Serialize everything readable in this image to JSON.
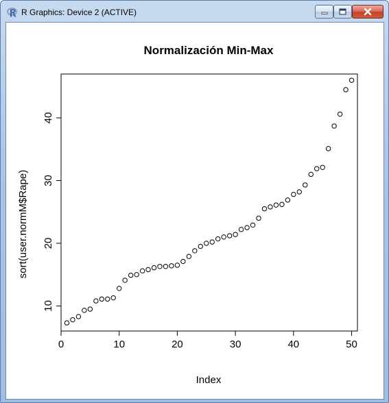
{
  "window": {
    "title": "R Graphics: Device 2 (ACTIVE)",
    "icons": {
      "app": "r-logo-icon",
      "minimize": "minimize-icon",
      "maximize": "maximize-icon",
      "close": "close-icon"
    }
  },
  "chart_data": {
    "type": "scatter",
    "title": "Normalización Min-Max",
    "xlabel": "Index",
    "ylabel": "sort(user.normM$Rape)",
    "xlim": [
      0,
      51
    ],
    "ylim": [
      6,
      47
    ],
    "xticks": [
      0,
      10,
      20,
      30,
      40,
      50
    ],
    "yticks": [
      10,
      20,
      30,
      40
    ],
    "grid": false,
    "legend": "none",
    "marker": "open-circle",
    "point_color": "#000000",
    "x": [
      1,
      2,
      3,
      4,
      5,
      6,
      7,
      8,
      9,
      10,
      11,
      12,
      13,
      14,
      15,
      16,
      17,
      18,
      19,
      20,
      21,
      22,
      23,
      24,
      25,
      26,
      27,
      28,
      29,
      30,
      31,
      32,
      33,
      34,
      35,
      36,
      37,
      38,
      39,
      40,
      41,
      42,
      43,
      44,
      45,
      46,
      47,
      48,
      49,
      50
    ],
    "y": [
      7.3,
      7.8,
      8.3,
      9.3,
      9.5,
      10.8,
      11.1,
      11.1,
      11.3,
      12.8,
      14.1,
      14.9,
      15.0,
      15.6,
      15.8,
      16.1,
      16.3,
      16.3,
      16.4,
      16.5,
      17.1,
      17.9,
      18.8,
      19.5,
      20.0,
      20.2,
      20.7,
      21.0,
      21.2,
      21.4,
      22.2,
      22.5,
      22.9,
      24.0,
      25.5,
      25.8,
      26.1,
      26.2,
      26.9,
      27.8,
      28.2,
      29.3,
      31.0,
      31.9,
      32.1,
      35.1,
      38.7,
      40.6,
      44.5,
      46.0
    ]
  }
}
